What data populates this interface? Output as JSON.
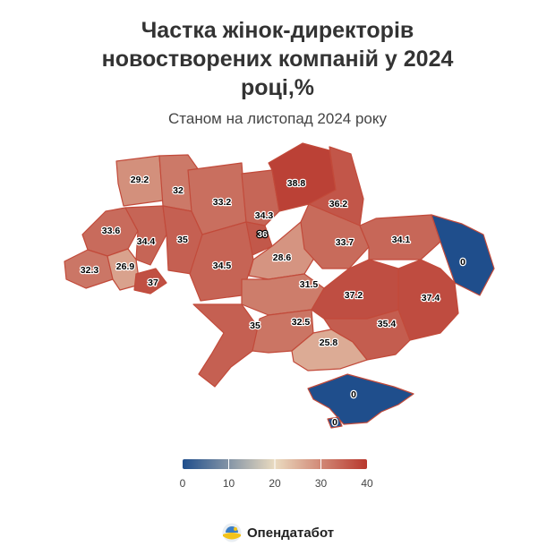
{
  "title_lines": [
    "Частка жінок-директорів",
    "новостворених компаній у 2024",
    "році,%"
  ],
  "subtitle": "Станом на листопад 2024 року",
  "colors": {
    "scale": [
      "#1f4e8c",
      "#eadbc0",
      "#b8372d"
    ],
    "border": "#c24a3a"
  },
  "legend": {
    "min": 0,
    "max": 40,
    "ticks": [
      "0",
      "10",
      "20",
      "30",
      "40"
    ]
  },
  "brand": {
    "name": "Опендатабот",
    "logo_icon": "sun-over-field-logo-icon"
  },
  "chart_data": {
    "type": "choropleth",
    "value_range": [
      0,
      40
    ],
    "regions": [
      {
        "name": "Volyn",
        "value": 29.2,
        "label": "29.2"
      },
      {
        "name": "Rivne",
        "value": 32,
        "label": "32"
      },
      {
        "name": "Zhytomyr",
        "value": 33.2,
        "label": "33.2"
      },
      {
        "name": "Kyiv Oblast",
        "value": 34.3,
        "label": "34.3"
      },
      {
        "name": "Kyiv City",
        "value": 36,
        "label": "36"
      },
      {
        "name": "Chernihiv",
        "value": 38.8,
        "label": "38.8"
      },
      {
        "name": "Sumy",
        "value": 36.2,
        "label": "36.2"
      },
      {
        "name": "Lviv",
        "value": 33.6,
        "label": "33.6"
      },
      {
        "name": "Ternopil",
        "value": 34.4,
        "label": "34.4"
      },
      {
        "name": "Khmelnytskyi",
        "value": 35,
        "label": "35"
      },
      {
        "name": "Vinnytsia",
        "value": 34.5,
        "label": "34.5"
      },
      {
        "name": "Cherkasy",
        "value": 28.6,
        "label": "28.6"
      },
      {
        "name": "Poltava",
        "value": 33.7,
        "label": "33.7"
      },
      {
        "name": "Kharkiv",
        "value": 34.1,
        "label": "34.1"
      },
      {
        "name": "Luhansk",
        "value": 0,
        "label": "0"
      },
      {
        "name": "Zakarpattia",
        "value": 32.3,
        "label": "32.3"
      },
      {
        "name": "Ivano-Frankivsk",
        "value": 26.9,
        "label": "26.9"
      },
      {
        "name": "Chernivtsi",
        "value": 37,
        "label": "37"
      },
      {
        "name": "Kirovohrad",
        "value": 31.5,
        "label": "31.5"
      },
      {
        "name": "Dnipropetrovsk",
        "value": 37.2,
        "label": "37.2"
      },
      {
        "name": "Donetsk",
        "value": 37.4,
        "label": "37.4"
      },
      {
        "name": "Odesa",
        "value": 35,
        "label": "35"
      },
      {
        "name": "Mykolaiv",
        "value": 32.5,
        "label": "32.5"
      },
      {
        "name": "Zaporizhzhia",
        "value": 35.4,
        "label": "35.4"
      },
      {
        "name": "Kherson",
        "value": 25.8,
        "label": "25.8"
      },
      {
        "name": "Crimea",
        "value": 0,
        "label": "0"
      },
      {
        "name": "Sevastopol",
        "value": 0,
        "label": "0"
      }
    ]
  }
}
